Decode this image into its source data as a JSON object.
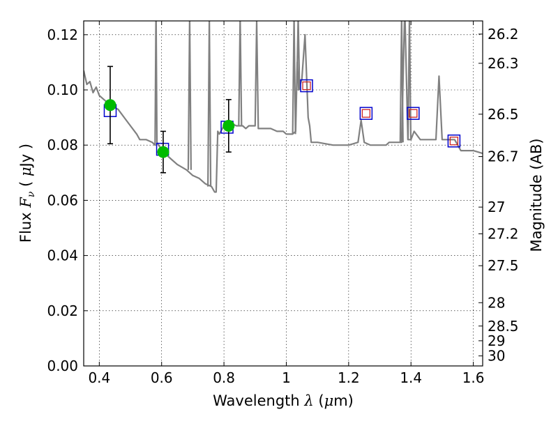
{
  "chart_data": {
    "type": "line",
    "xlabel": {
      "prefix": "Wavelength ",
      "symbol": "λ",
      "unit_open": " (",
      "unit_mu": "μ",
      "unit_rest": "m)"
    },
    "ylabel": {
      "prefix": "Flux ",
      "symbol": "F",
      "subscript": "ν",
      "unit_open": " ( ",
      "unit_mu": "μ",
      "unit_rest": "Jy )"
    },
    "y2label": "Magnitude (AB)",
    "xlim": [
      0.35,
      1.63
    ],
    "ylim": [
      0.0,
      0.125
    ],
    "grid": true,
    "xticks": [
      {
        "value": 0.4,
        "label": "0.4"
      },
      {
        "value": 0.6,
        "label": "0.6"
      },
      {
        "value": 0.8,
        "label": "0.8"
      },
      {
        "value": 1.0,
        "label": "1"
      },
      {
        "value": 1.2,
        "label": "1.2"
      },
      {
        "value": 1.4,
        "label": "1.4"
      },
      {
        "value": 1.6,
        "label": "1.6"
      }
    ],
    "yticks": [
      {
        "value": 0.0,
        "label": "0.00"
      },
      {
        "value": 0.02,
        "label": "0.02"
      },
      {
        "value": 0.04,
        "label": "0.04"
      },
      {
        "value": 0.06,
        "label": "0.06"
      },
      {
        "value": 0.08,
        "label": "0.08"
      },
      {
        "value": 0.1,
        "label": "0.10"
      },
      {
        "value": 0.12,
        "label": "0.12"
      }
    ],
    "y2ticks": [
      {
        "value": 26.2,
        "label": "26.2"
      },
      {
        "value": 26.3,
        "label": "26.3"
      },
      {
        "value": 26.5,
        "label": "26.5"
      },
      {
        "value": 26.7,
        "label": "26.7"
      },
      {
        "value": 27,
        "label": "27"
      },
      {
        "value": 27.2,
        "label": "27.2"
      },
      {
        "value": 27.5,
        "label": "27.5"
      },
      {
        "value": 28,
        "label": "28"
      },
      {
        "value": 28.5,
        "label": "28.5"
      },
      {
        "value": 29,
        "label": "29"
      },
      {
        "value": 30,
        "label": "30"
      }
    ],
    "series": [
      {
        "kind": "model-spectrum",
        "color": "#808080",
        "x": [
          0.35,
          0.36,
          0.37,
          0.38,
          0.39,
          0.4,
          0.41,
          0.42,
          0.44,
          0.46,
          0.48,
          0.5,
          0.52,
          0.53,
          0.55,
          0.57,
          0.579,
          0.582,
          0.585,
          0.59,
          0.61,
          0.63,
          0.65,
          0.68,
          0.7,
          0.72,
          0.74,
          0.76,
          0.77,
          0.775,
          0.78,
          0.785,
          0.79,
          0.8,
          0.81,
          0.82,
          0.84,
          0.86,
          0.87,
          0.88,
          0.9,
          0.905,
          0.91,
          0.915,
          0.93,
          0.95,
          0.97,
          0.99,
          1.0,
          1.02,
          1.03,
          1.035,
          1.04,
          1.05,
          1.06,
          1.07,
          1.075,
          1.08,
          1.1,
          1.15,
          1.2,
          1.23,
          1.24,
          1.25,
          1.27,
          1.3,
          1.32,
          1.33,
          1.35,
          1.37,
          1.38,
          1.39,
          1.4,
          1.41,
          1.43,
          1.46,
          1.48,
          1.49,
          1.5,
          1.52,
          1.54,
          1.56,
          1.6,
          1.63
        ],
        "y": [
          0.107,
          0.102,
          0.103,
          0.099,
          0.101,
          0.098,
          0.097,
          0.096,
          0.094,
          0.093,
          0.09,
          0.087,
          0.084,
          0.082,
          0.082,
          0.081,
          0.08,
          0.13,
          0.081,
          0.08,
          0.077,
          0.075,
          0.073,
          0.071,
          0.069,
          0.068,
          0.066,
          0.065,
          0.063,
          0.063,
          0.085,
          0.084,
          0.085,
          0.087,
          0.088,
          0.088,
          0.087,
          0.087,
          0.086,
          0.087,
          0.087,
          0.125,
          0.086,
          0.086,
          0.086,
          0.086,
          0.085,
          0.085,
          0.084,
          0.084,
          0.085,
          0.11,
          0.1,
          0.104,
          0.12,
          0.09,
          0.087,
          0.081,
          0.081,
          0.08,
          0.08,
          0.081,
          0.089,
          0.081,
          0.08,
          0.08,
          0.08,
          0.081,
          0.081,
          0.081,
          0.13,
          0.082,
          0.082,
          0.085,
          0.082,
          0.082,
          0.082,
          0.105,
          0.082,
          0.082,
          0.082,
          0.078,
          0.078,
          0.077
        ]
      }
    ],
    "spikes": [
      {
        "x": 0.583,
        "y_top": 0.125
      },
      {
        "x": 0.69,
        "y_top": 0.125
      },
      {
        "x": 0.753,
        "y_top": 0.125
      },
      {
        "x": 0.852,
        "y_top": 0.125
      },
      {
        "x": 0.905,
        "y_top": 0.125
      },
      {
        "x": 1.025,
        "y_top": 0.125
      },
      {
        "x": 1.038,
        "y_top": 0.125
      },
      {
        "x": 1.37,
        "y_top": 0.125
      },
      {
        "x": 1.395,
        "y_top": 0.125
      }
    ],
    "observed_points": [
      {
        "x": 0.435,
        "y": 0.0945,
        "yerr": 0.014,
        "color": "#00bb00"
      },
      {
        "x": 0.605,
        "y": 0.0775,
        "yerr": 0.0075,
        "color": "#00bb00"
      },
      {
        "x": 0.815,
        "y": 0.087,
        "yerr": 0.0095,
        "color": "#00bb00"
      }
    ],
    "model_bands": [
      {
        "x": 0.435,
        "y": 0.0925,
        "color": "#0000cc",
        "inner": false
      },
      {
        "x": 0.603,
        "y": 0.0785,
        "color": "#0000cc",
        "inner": false
      },
      {
        "x": 0.81,
        "y": 0.0865,
        "color": "#0000cc",
        "inner": false
      },
      {
        "x": 1.065,
        "y": 0.1015,
        "color": "#0000cc",
        "inner": true,
        "inner_color": "#cc2222"
      },
      {
        "x": 1.256,
        "y": 0.0915,
        "color": "#0000cc",
        "inner": true,
        "inner_color": "#cc2222"
      },
      {
        "x": 1.407,
        "y": 0.0915,
        "color": "#0000cc",
        "inner": true,
        "inner_color": "#cc2222"
      },
      {
        "x": 1.538,
        "y": 0.0815,
        "color": "#0000cc",
        "inner": true,
        "inner_color": "#cc2222"
      }
    ]
  }
}
